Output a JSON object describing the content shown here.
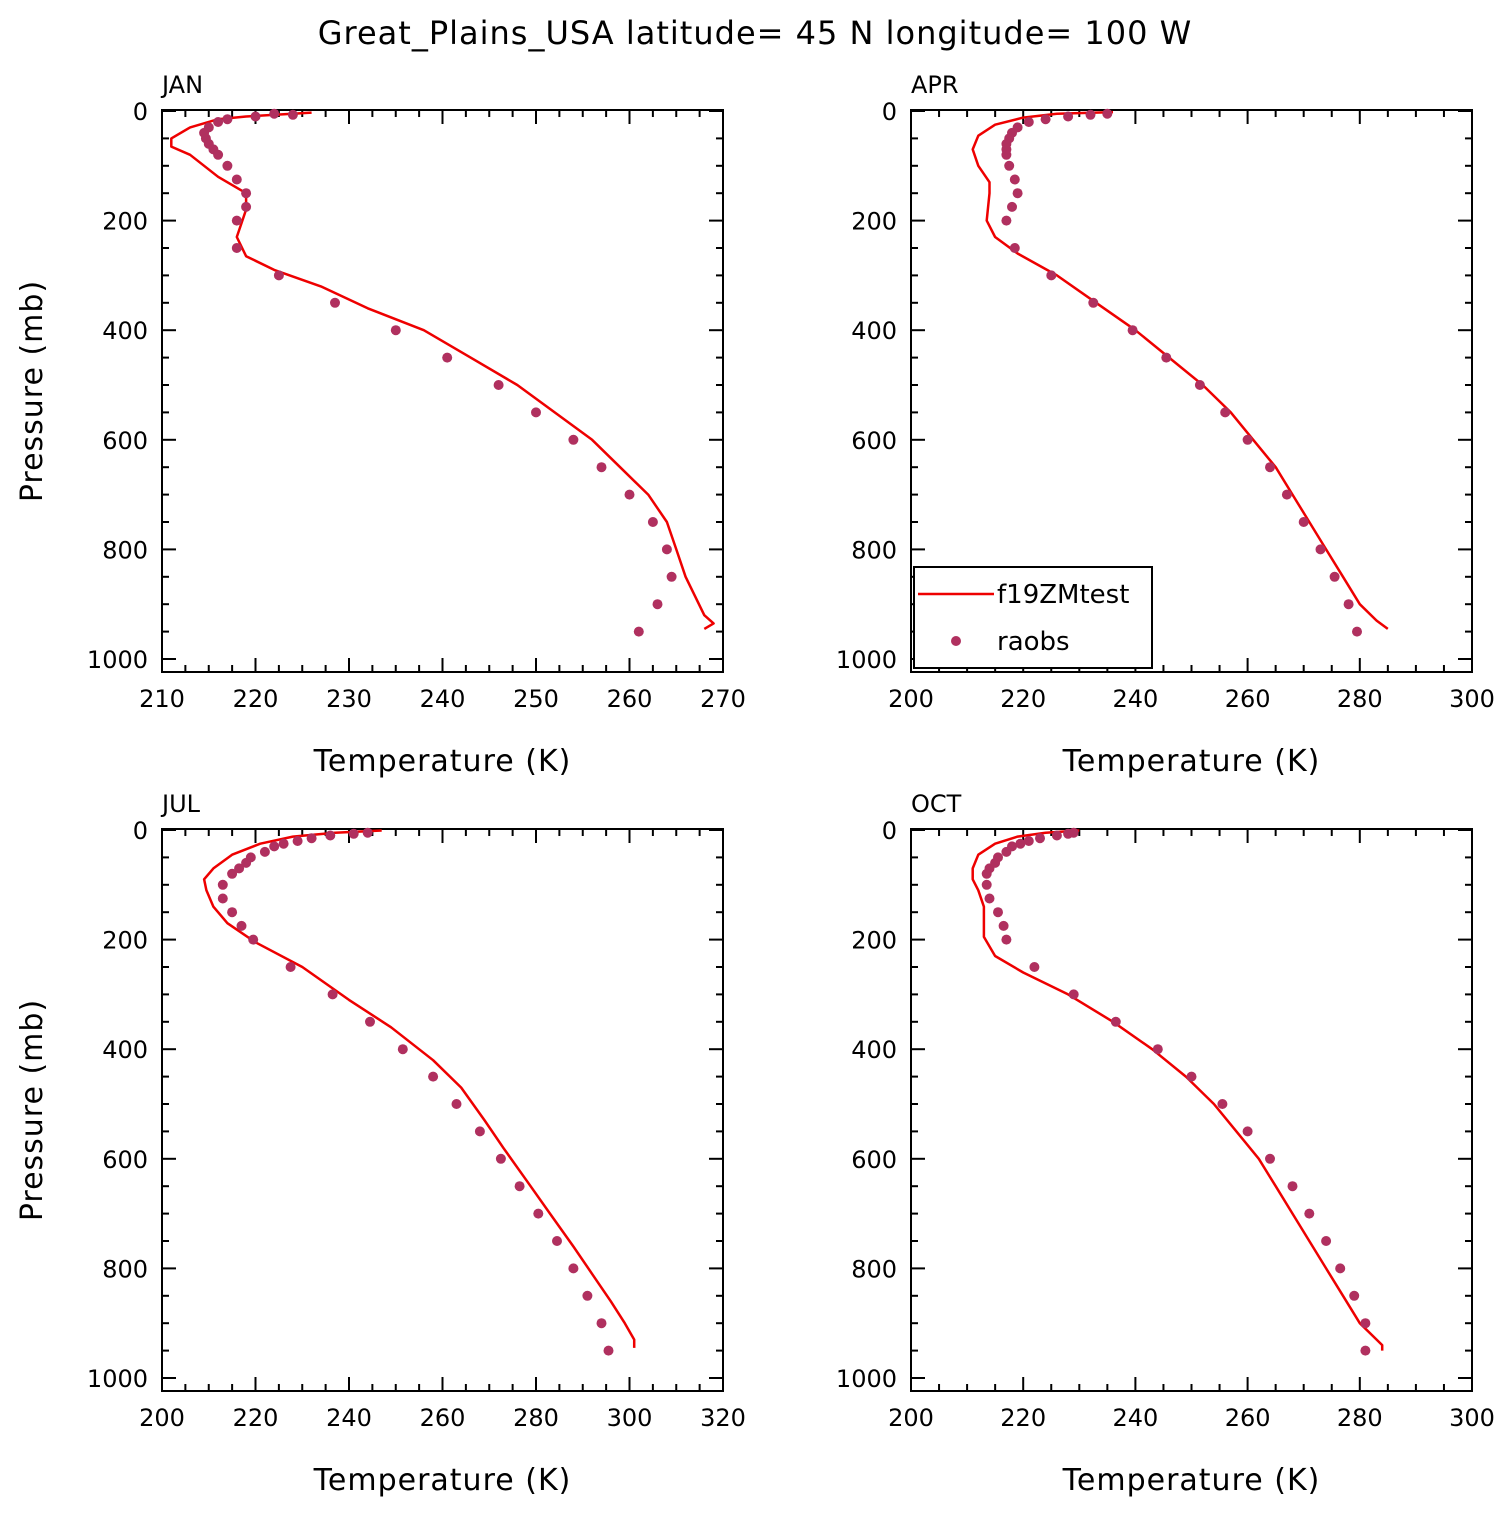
{
  "title": "Great_Plains_USA  latitude= 45 N longitude= 100 W",
  "colors": {
    "model_line": "#ee0000",
    "obs_marker": "#b0305f",
    "axis": "#000000"
  },
  "legend": {
    "placement": "inside lower-left of APR panel",
    "items": [
      {
        "label": "f19ZMtest",
        "symbol": "line"
      },
      {
        "label": "raobs",
        "symbol": "dot"
      }
    ]
  },
  "chart_data": [
    {
      "type": "line",
      "panel": "JAN",
      "xlabel": "Temperature (K)",
      "ylabel": "Pressure (mb)",
      "xlim": [
        210,
        270
      ],
      "ylim": [
        1000,
        0
      ],
      "xticks": [
        210,
        220,
        230,
        240,
        250,
        260,
        270
      ],
      "yticks": [
        0,
        200,
        400,
        600,
        800,
        1000
      ],
      "series": [
        {
          "name": "f19ZMtest",
          "kind": "line",
          "points": [
            [
              226,
              3
            ],
            [
              219,
              10
            ],
            [
              216,
              15
            ],
            [
              213,
              30
            ],
            [
              211,
              50
            ],
            [
              211,
              65
            ],
            [
              213,
              80
            ],
            [
              216,
              120
            ],
            [
              219,
              150
            ],
            [
              219,
              180
            ],
            [
              218,
              230
            ],
            [
              219,
              265
            ],
            [
              222,
              290
            ],
            [
              227,
              320
            ],
            [
              232,
              360
            ],
            [
              238,
              400
            ],
            [
              243,
              450
            ],
            [
              248,
              500
            ],
            [
              252,
              550
            ],
            [
              256,
              600
            ],
            [
              259,
              650
            ],
            [
              262,
              700
            ],
            [
              264,
              750
            ],
            [
              265,
              800
            ],
            [
              266,
              850
            ],
            [
              268,
              920
            ],
            [
              269,
              935
            ],
            [
              268,
              945
            ]
          ]
        },
        {
          "name": "raobs",
          "kind": "scatter",
          "points": [
            [
              224,
              7
            ],
            [
              222,
              5
            ],
            [
              220,
              10
            ],
            [
              217,
              15
            ],
            [
              216,
              20
            ],
            [
              215,
              30
            ],
            [
              214.5,
              40
            ],
            [
              214.7,
              50
            ],
            [
              215,
              60
            ],
            [
              215.5,
              70
            ],
            [
              216,
              80
            ],
            [
              217,
              100
            ],
            [
              218,
              125
            ],
            [
              219,
              150
            ],
            [
              219,
              175
            ],
            [
              218,
              200
            ],
            [
              218,
              250
            ],
            [
              222.5,
              300
            ],
            [
              228.5,
              350
            ],
            [
              235,
              400
            ],
            [
              240.5,
              450
            ],
            [
              246,
              500
            ],
            [
              250,
              550
            ],
            [
              254,
              600
            ],
            [
              257,
              650
            ],
            [
              260,
              700
            ],
            [
              262.5,
              750
            ],
            [
              264,
              800
            ],
            [
              264.5,
              850
            ],
            [
              263,
              900
            ],
            [
              261,
              950
            ]
          ]
        }
      ]
    },
    {
      "type": "line",
      "panel": "APR",
      "xlabel": "Temperature (K)",
      "ylabel": "",
      "xlim": [
        200,
        300
      ],
      "ylim": [
        1000,
        0
      ],
      "xticks": [
        200,
        220,
        240,
        260,
        280,
        300
      ],
      "yticks": [
        0,
        200,
        400,
        600,
        800,
        1000
      ],
      "series": [
        {
          "name": "f19ZMtest",
          "kind": "line",
          "points": [
            [
              236,
              2
            ],
            [
              226,
              5
            ],
            [
              220,
              12
            ],
            [
              215,
              25
            ],
            [
              212,
              45
            ],
            [
              211,
              70
            ],
            [
              212,
              100
            ],
            [
              214,
              130
            ],
            [
              214,
              150
            ],
            [
              213.5,
              200
            ],
            [
              215,
              230
            ],
            [
              219,
              260
            ],
            [
              226,
              300
            ],
            [
              233,
              350
            ],
            [
              240,
              400
            ],
            [
              246,
              450
            ],
            [
              252,
              500
            ],
            [
              257,
              550
            ],
            [
              261,
              600
            ],
            [
              265,
              650
            ],
            [
              268,
              700
            ],
            [
              271,
              750
            ],
            [
              274,
              800
            ],
            [
              277,
              850
            ],
            [
              280,
              900
            ],
            [
              283,
              930
            ],
            [
              285,
              945
            ]
          ]
        },
        {
          "name": "raobs",
          "kind": "scatter",
          "points": [
            [
              235,
              5
            ],
            [
              232,
              7
            ],
            [
              228,
              10
            ],
            [
              224,
              15
            ],
            [
              221,
              20
            ],
            [
              219,
              30
            ],
            [
              218,
              40
            ],
            [
              217.5,
              50
            ],
            [
              217,
              60
            ],
            [
              217,
              70
            ],
            [
              217,
              80
            ],
            [
              217.5,
              100
            ],
            [
              218.5,
              125
            ],
            [
              219,
              150
            ],
            [
              218,
              175
            ],
            [
              217,
              200
            ],
            [
              218.5,
              250
            ],
            [
              225,
              300
            ],
            [
              232.5,
              350
            ],
            [
              239.5,
              400
            ],
            [
              245.5,
              450
            ],
            [
              251.5,
              500
            ],
            [
              256,
              550
            ],
            [
              260,
              600
            ],
            [
              264,
              650
            ],
            [
              267,
              700
            ],
            [
              270,
              750
            ],
            [
              273,
              800
            ],
            [
              275.5,
              850
            ],
            [
              278,
              900
            ],
            [
              279.5,
              950
            ]
          ]
        }
      ]
    },
    {
      "type": "line",
      "panel": "JUL",
      "xlabel": "Temperature (K)",
      "ylabel": "Pressure (mb)",
      "xlim": [
        200,
        320
      ],
      "ylim": [
        1000,
        0
      ],
      "xticks": [
        200,
        220,
        240,
        260,
        280,
        300,
        320
      ],
      "yticks": [
        0,
        200,
        400,
        600,
        800,
        1000
      ],
      "series": [
        {
          "name": "f19ZMtest",
          "kind": "line",
          "points": [
            [
              247,
              1
            ],
            [
              237,
              5
            ],
            [
              228,
              12
            ],
            [
              221,
              25
            ],
            [
              215,
              45
            ],
            [
              211,
              70
            ],
            [
              209,
              90
            ],
            [
              209.5,
              110
            ],
            [
              211,
              140
            ],
            [
              214,
              170
            ],
            [
              220,
              205
            ],
            [
              230,
              250
            ],
            [
              240,
              310
            ],
            [
              249,
              360
            ],
            [
              258,
              420
            ],
            [
              264,
              470
            ],
            [
              269,
              530
            ],
            [
              273,
              580
            ],
            [
              278,
              640
            ],
            [
              283,
              700
            ],
            [
              288,
              760
            ],
            [
              292,
              810
            ],
            [
              296,
              860
            ],
            [
              299,
              900
            ],
            [
              301,
              930
            ],
            [
              301,
              945
            ]
          ]
        },
        {
          "name": "raobs",
          "kind": "scatter",
          "points": [
            [
              244,
              5
            ],
            [
              241,
              7
            ],
            [
              236,
              10
            ],
            [
              232,
              15
            ],
            [
              229,
              20
            ],
            [
              226,
              25
            ],
            [
              224,
              30
            ],
            [
              222,
              40
            ],
            [
              219,
              50
            ],
            [
              218,
              60
            ],
            [
              216.5,
              70
            ],
            [
              215,
              80
            ],
            [
              213,
              100
            ],
            [
              213,
              125
            ],
            [
              215,
              150
            ],
            [
              217,
              175
            ],
            [
              219.5,
              200
            ],
            [
              227.5,
              250
            ],
            [
              236.5,
              300
            ],
            [
              244.5,
              350
            ],
            [
              251.5,
              400
            ],
            [
              258,
              450
            ],
            [
              263,
              500
            ],
            [
              268,
              550
            ],
            [
              272.5,
              600
            ],
            [
              276.5,
              650
            ],
            [
              280.5,
              700
            ],
            [
              284.5,
              750
            ],
            [
              288,
              800
            ],
            [
              291,
              850
            ],
            [
              294,
              900
            ],
            [
              295.5,
              950
            ]
          ]
        }
      ]
    },
    {
      "type": "line",
      "panel": "OCT",
      "xlabel": "Temperature (K)",
      "ylabel": "",
      "xlim": [
        200,
        300
      ],
      "ylim": [
        1000,
        0
      ],
      "xticks": [
        200,
        220,
        240,
        260,
        280,
        300
      ],
      "yticks": [
        0,
        200,
        400,
        600,
        800,
        1000
      ],
      "series": [
        {
          "name": "f19ZMtest",
          "kind": "line",
          "points": [
            [
              230,
              1
            ],
            [
              224,
              5
            ],
            [
              219,
              12
            ],
            [
              215,
              25
            ],
            [
              212,
              45
            ],
            [
              211,
              70
            ],
            [
              211,
              90
            ],
            [
              212,
              110
            ],
            [
              213,
              140
            ],
            [
              213,
              160
            ],
            [
              213,
              195
            ],
            [
              215,
              230
            ],
            [
              220,
              260
            ],
            [
              228,
              300
            ],
            [
              236,
              350
            ],
            [
              243,
              400
            ],
            [
              249,
              450
            ],
            [
              254,
              500
            ],
            [
              258,
              550
            ],
            [
              262,
              600
            ],
            [
              265,
              650
            ],
            [
              268,
              700
            ],
            [
              271,
              750
            ],
            [
              274,
              800
            ],
            [
              277,
              850
            ],
            [
              280,
              900
            ],
            [
              283,
              930
            ],
            [
              284,
              940
            ],
            [
              284,
              950
            ]
          ]
        },
        {
          "name": "raobs",
          "kind": "scatter",
          "points": [
            [
              229,
              5
            ],
            [
              228,
              7
            ],
            [
              226,
              10
            ],
            [
              223,
              15
            ],
            [
              221,
              20
            ],
            [
              219.5,
              25
            ],
            [
              218,
              30
            ],
            [
              217,
              40
            ],
            [
              215.5,
              50
            ],
            [
              215,
              60
            ],
            [
              214,
              70
            ],
            [
              213.5,
              80
            ],
            [
              213.5,
              100
            ],
            [
              214,
              125
            ],
            [
              215.5,
              150
            ],
            [
              216.5,
              175
            ],
            [
              217,
              200
            ],
            [
              222,
              250
            ],
            [
              229,
              300
            ],
            [
              236.5,
              350
            ],
            [
              244,
              400
            ],
            [
              250,
              450
            ],
            [
              255.5,
              500
            ],
            [
              260,
              550
            ],
            [
              264,
              600
            ],
            [
              268,
              650
            ],
            [
              271,
              700
            ],
            [
              274,
              750
            ],
            [
              276.5,
              800
            ],
            [
              279,
              850
            ],
            [
              281,
              900
            ],
            [
              281,
              950
            ]
          ]
        }
      ]
    }
  ]
}
